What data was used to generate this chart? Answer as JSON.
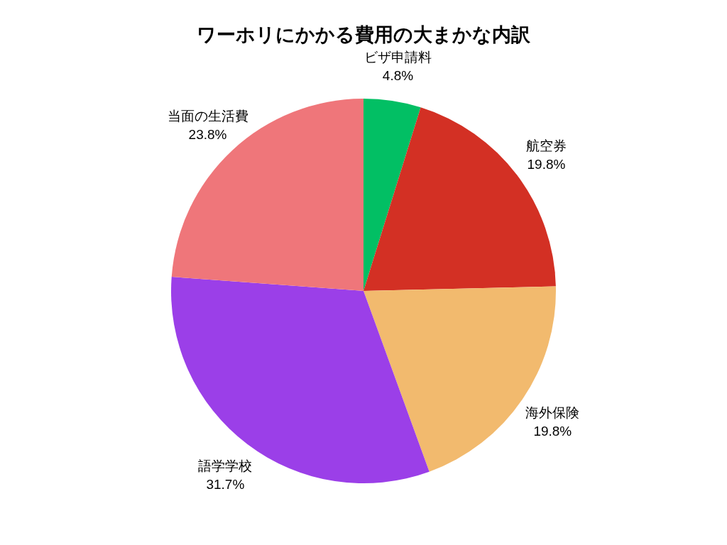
{
  "chart_data": {
    "type": "pie",
    "title": "ワーホリにかかる費用の大まかな内訳",
    "categories": [
      "ビザ申請料",
      "航空券",
      "海外保険",
      "語学学校",
      "当面の生活費"
    ],
    "values": [
      4.8,
      19.8,
      19.8,
      31.7,
      23.8
    ],
    "value_labels": [
      "4.8%",
      "19.8%",
      "19.8%",
      "31.7%",
      "23.8%"
    ],
    "colors": [
      "#02bf64",
      "#d33024",
      "#f2ba6e",
      "#9b3fe8",
      "#ef767a"
    ]
  }
}
